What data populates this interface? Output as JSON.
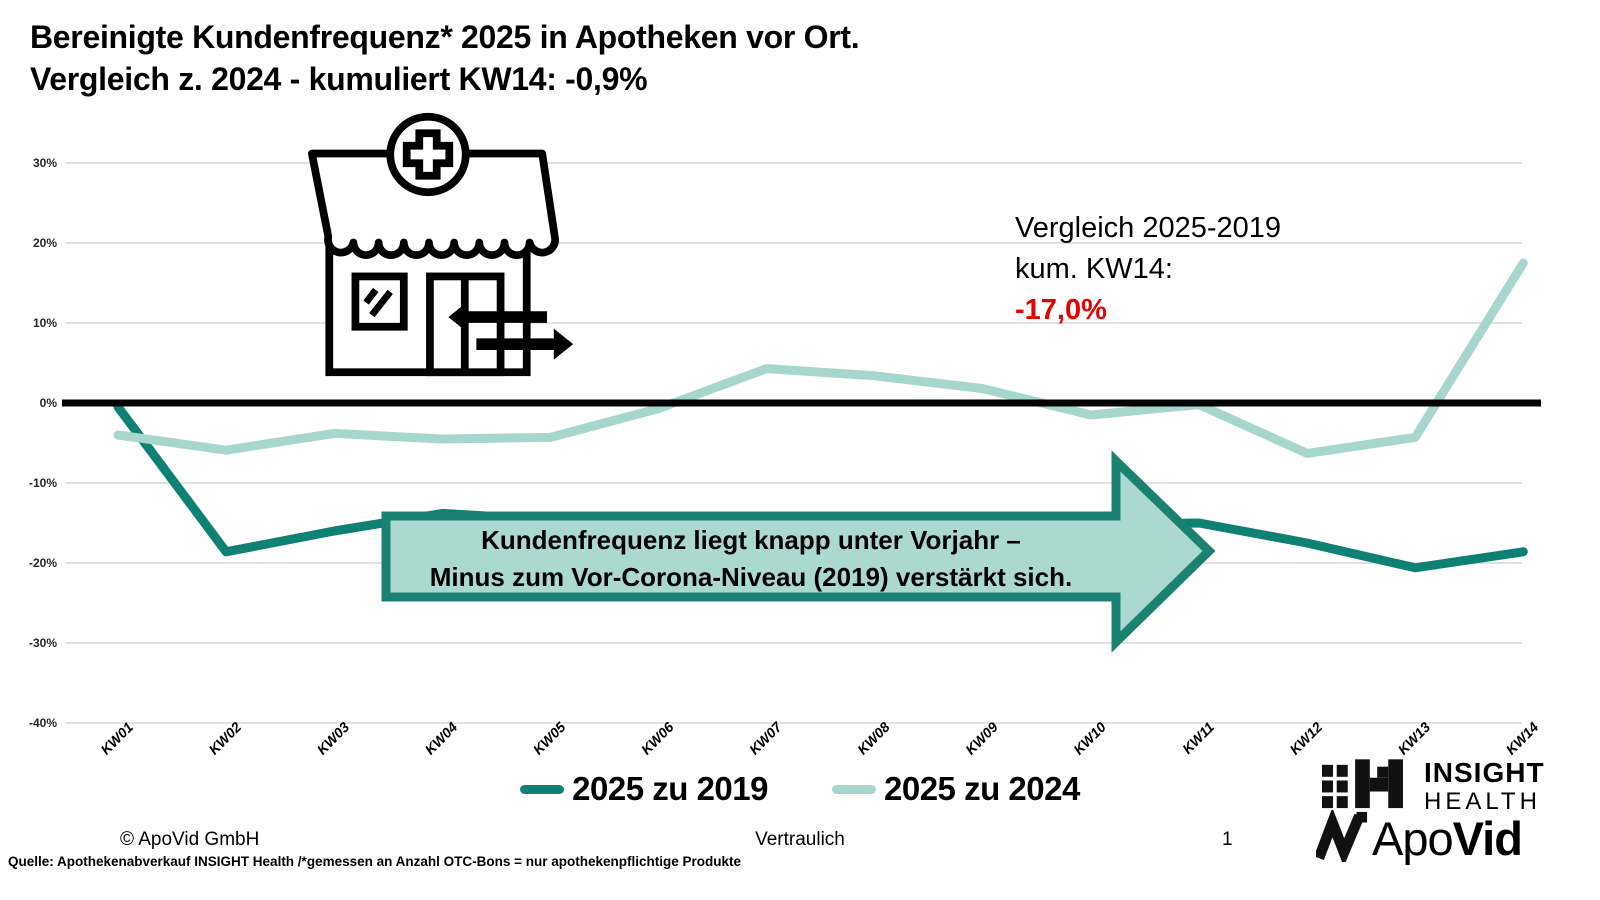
{
  "title": {
    "line1": "Bereinigte Kundenfrequenz* 2025 in Apotheken vor Ort.",
    "line2": "Vergleich z. 2024 - kumuliert KW14: -0,9%"
  },
  "chart_data": {
    "type": "line",
    "categories": [
      "KW01",
      "KW02",
      "KW03",
      "KW04",
      "KW05",
      "KW06",
      "KW07",
      "KW08",
      "KW09",
      "KW10",
      "KW11",
      "KW12",
      "KW13",
      "KW14"
    ],
    "series": [
      {
        "name": "2025 zu 2019",
        "color": "#0E8174",
        "values": [
          -0.5,
          -18.6,
          -16.0,
          -13.8,
          -14.6,
          -15.0,
          -15.2,
          -15.0,
          -15.3,
          -15.2,
          -15.0,
          -17.5,
          -20.6,
          -18.6
        ]
      },
      {
        "name": "2025 zu 2024",
        "color": "#A6D6CE",
        "values": [
          -4.0,
          -5.9,
          -3.8,
          -4.5,
          -4.3,
          -0.7,
          4.3,
          3.4,
          1.8,
          -1.5,
          -0.2,
          -6.3,
          -4.3,
          17.5
        ]
      }
    ],
    "yticks": [
      30,
      20,
      10,
      0,
      -10,
      -20,
      -30,
      -40
    ],
    "ytick_labels": [
      "30%",
      "20%",
      "10%",
      "0%",
      "-10%",
      "-20%",
      "-30%",
      "-40%"
    ],
    "ylim": [
      -40,
      30
    ],
    "grid": true,
    "zero_line_color": "#000000",
    "grid_color": "#d9d9d9",
    "legend_position": "bottom"
  },
  "annotation": {
    "line1": "Vergleich 2025-2019",
    "line2": "kum. KW14:",
    "value": "-17,0%",
    "value_color": "#E60000"
  },
  "banner": {
    "line1": "Kundenfrequenz liegt knapp unter Vorjahr –",
    "line2": "Minus zum Vor-Corona-Niveau (2019) verstärkt sich.",
    "fill": "#ABD9D1",
    "border": "#1B8173"
  },
  "legend": [
    {
      "label": "2025 zu 2019",
      "color": "#0E8174"
    },
    {
      "label": "2025 zu 2024",
      "color": "#A6D6CE"
    }
  ],
  "footer": {
    "copyright": "© ApoVid GmbH",
    "confidential": "Vertraulich",
    "page": "1",
    "source": "Quelle: Apothekenabverkauf INSIGHT Health /*gemessen an Anzahl OTC-Bons = nur apothekenpflichtige Produkte"
  },
  "logos": {
    "insight_line1": "INSIGHT",
    "insight_line2": "HEALTH",
    "apovid_part1": "Apo",
    "apovid_part2": "Vid"
  },
  "icons": {
    "pharmacy_store": "pharmacy-store-icon",
    "arrow_in": "arrow-left-icon",
    "arrow_out": "arrow-right-icon"
  }
}
